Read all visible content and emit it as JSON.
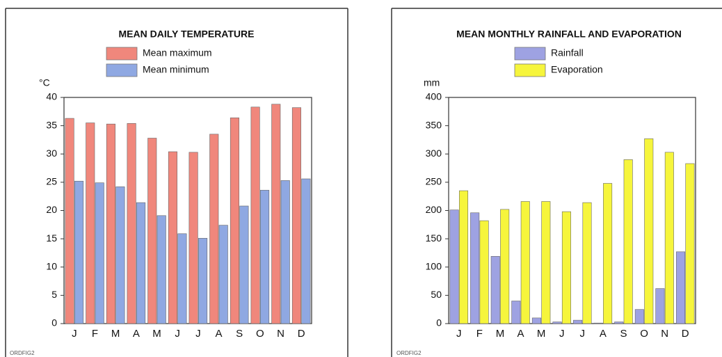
{
  "chart_data": [
    {
      "type": "bar",
      "title": "MEAN DAILY TEMPERATURE",
      "y_label": "°C",
      "note": "ORDFIG2",
      "categories": [
        "J",
        "F",
        "M",
        "A",
        "M",
        "J",
        "J",
        "A",
        "S",
        "O",
        "N",
        "D"
      ],
      "series": [
        {
          "name": "Mean maximum",
          "color": "#f0877c",
          "values": [
            36.3,
            35.5,
            35.3,
            35.4,
            32.8,
            30.4,
            30.3,
            33.5,
            36.4,
            38.3,
            38.8,
            38.2
          ]
        },
        {
          "name": "Mean minimum",
          "color": "#8fa8e2",
          "values": [
            25.2,
            24.9,
            24.2,
            21.4,
            19.1,
            15.9,
            15.1,
            17.4,
            20.8,
            23.6,
            25.3,
            25.6
          ]
        }
      ],
      "ylim": [
        0,
        40
      ],
      "yticks": [
        0,
        5,
        10,
        15,
        20,
        25,
        30,
        35,
        40
      ]
    },
    {
      "type": "bar",
      "title": "MEAN MONTHLY RAINFALL AND EVAPORATION",
      "y_label": "mm",
      "note": "ORDFIG2",
      "categories": [
        "J",
        "F",
        "M",
        "A",
        "M",
        "J",
        "J",
        "A",
        "S",
        "O",
        "N",
        "D"
      ],
      "series": [
        {
          "name": "Rainfall",
          "color": "#9ea2e2",
          "values": [
            201,
            196,
            119,
            40,
            10,
            3,
            6,
            1,
            3,
            25,
            62,
            127
          ]
        },
        {
          "name": "Evaporation",
          "color": "#f6f53c",
          "values": [
            235,
            182,
            202,
            216,
            216,
            198,
            214,
            248,
            290,
            327,
            303,
            283
          ]
        }
      ],
      "ylim": [
        0,
        400
      ],
      "yticks": [
        0,
        50,
        100,
        150,
        200,
        250,
        300,
        350,
        400
      ]
    }
  ]
}
